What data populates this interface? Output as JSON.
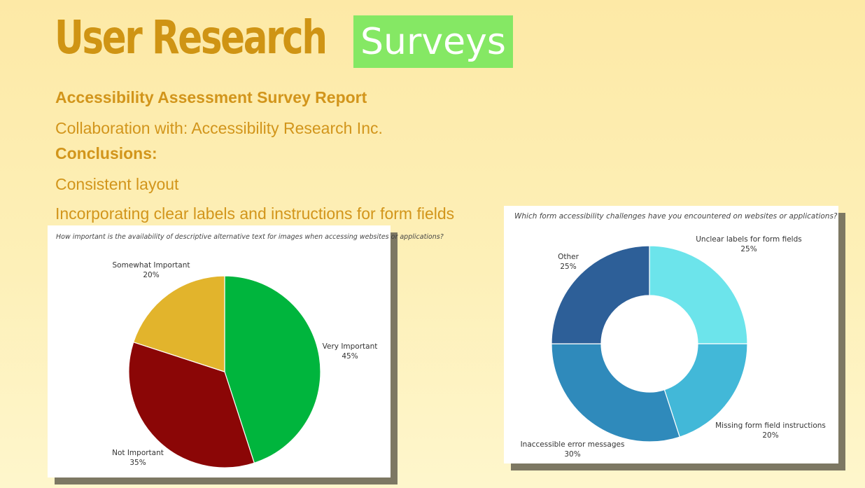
{
  "header": {
    "title": "User Research",
    "badge": "Surveys"
  },
  "report": {
    "title": "Accessibility Assessment Survey Report",
    "collaboration": "Collaboration with: Accessibility Research Inc.",
    "conclusions_label": "Conclusions:",
    "conclusions": [
      "Consistent layout",
      "Incorporating clear labels and instructions for form fields"
    ]
  },
  "chart_data": [
    {
      "type": "pie",
      "title": "How important is the availability of descriptive alternative text for images when accessing websites or applications?",
      "categories": [
        "Very Important",
        "Not Important",
        "Somewhat Important"
      ],
      "values": [
        45,
        35,
        20
      ],
      "labels": [
        "45%",
        "35%",
        "20%"
      ],
      "colors": [
        "#00b53d",
        "#8b0606",
        "#e2b42c"
      ]
    },
    {
      "type": "pie",
      "title": "Which form accessibility challenges have you encountered on websites or applications?",
      "categories": [
        "Unclear labels for form fields",
        "Missing form field instructions",
        "Inaccessible error messages",
        "Other"
      ],
      "values": [
        25,
        20,
        30,
        25
      ],
      "labels": [
        "25%",
        "20%",
        "30%",
        "25%"
      ],
      "colors": [
        "#6ce4eb",
        "#42b8d8",
        "#2f8abb",
        "#2d5f98"
      ]
    }
  ]
}
